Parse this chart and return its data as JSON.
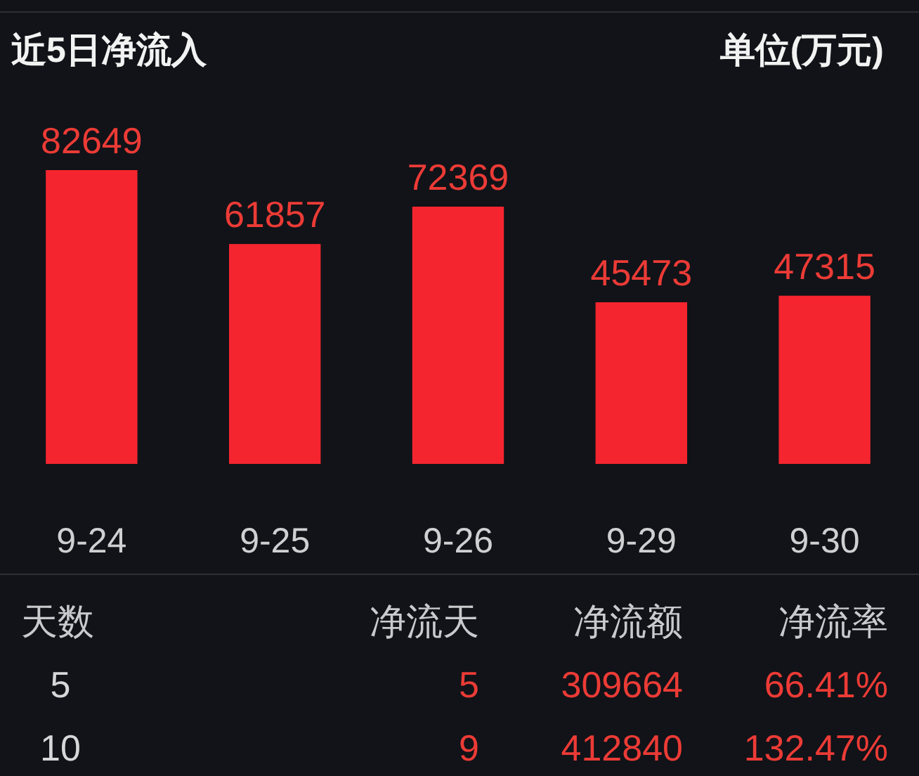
{
  "chart_data": [
    {
      "type": "bar",
      "title": "近5日净流入",
      "subtitle": "单位(万元)",
      "categories": [
        "9-24",
        "9-25",
        "9-26",
        "9-29",
        "9-30"
      ],
      "values": [
        82649,
        61857,
        72369,
        45473,
        47315
      ],
      "color": "#f5252f",
      "data_labels": true
    },
    {
      "type": "other",
      "annotations": [
        "天数",
        "净流天",
        "净流额",
        "净流率",
        "5",
        "5",
        "309664",
        "66.41%",
        "10",
        "9",
        "412840",
        "132.47%"
      ]
    }
  ]
}
